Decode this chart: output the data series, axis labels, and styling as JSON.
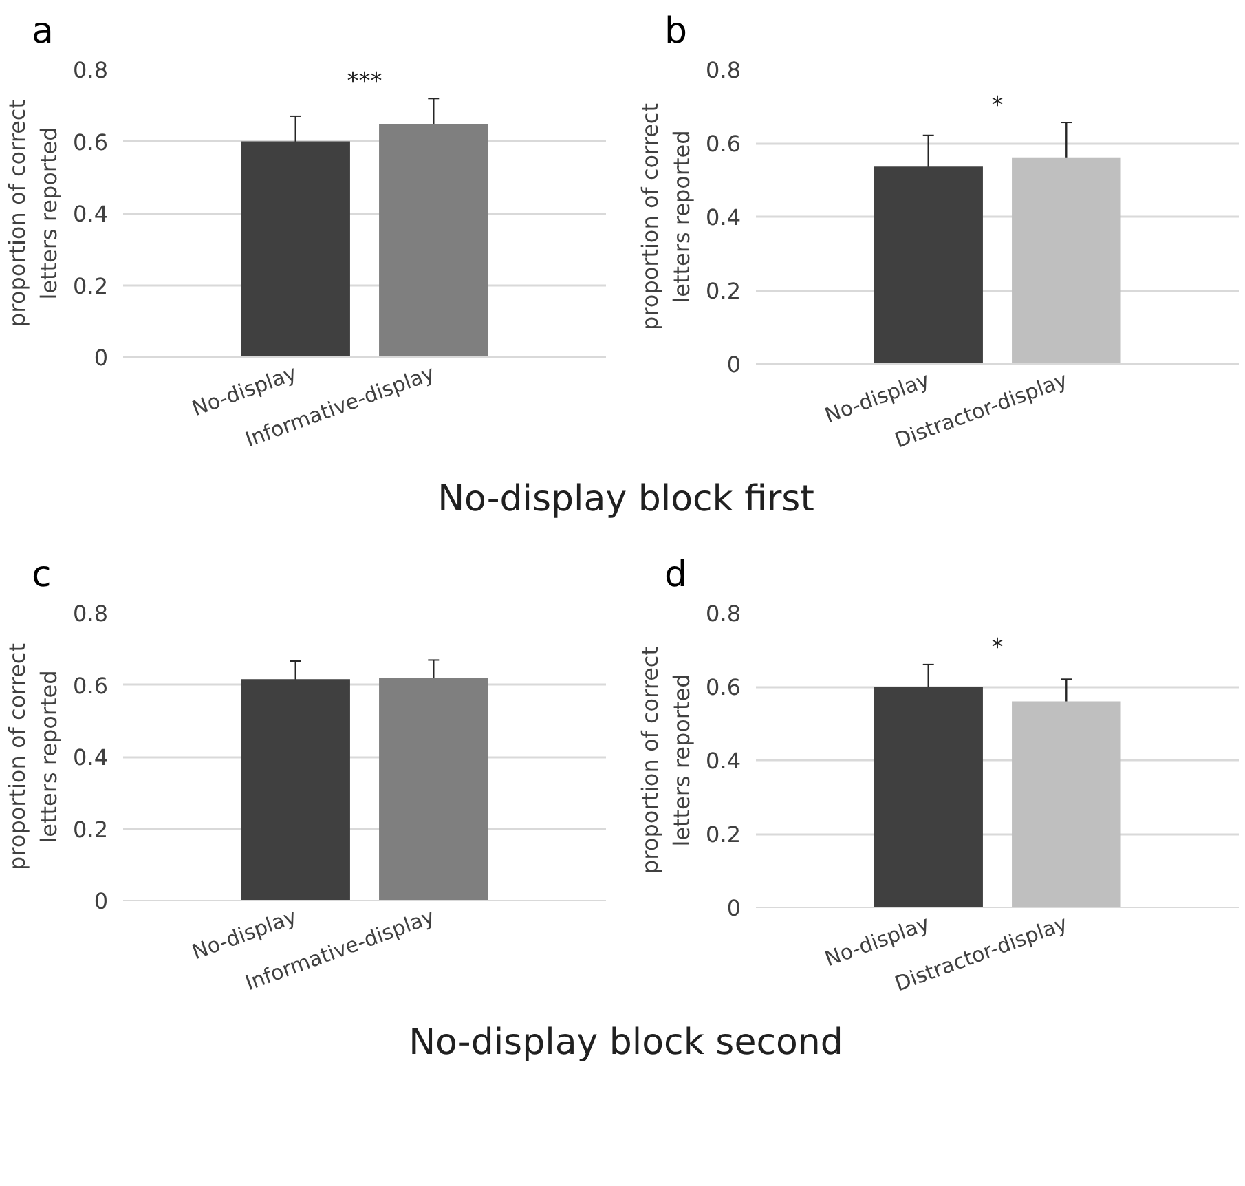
{
  "chart_data": [
    {
      "type": "bar",
      "title": "a",
      "ylabel": "proportion of correct letters reported",
      "categories": [
        "No-display",
        "Informative-display"
      ],
      "values": [
        0.6,
        0.649
      ],
      "colors": [
        "#404040",
        "#7f7f7f"
      ],
      "errors": [
        0.07,
        0.07
      ],
      "ylim": [
        0,
        0.8
      ],
      "yticks": [
        0,
        0.2,
        0.4,
        0.6,
        0.8
      ],
      "grid": "y",
      "annotations": [
        "***"
      ],
      "subtitle": "No-display block first"
    },
    {
      "type": "bar",
      "title": "b",
      "ylabel": "proportion of correct letters reported",
      "categories": [
        "No-display",
        "Distractor-display"
      ],
      "values": [
        0.536,
        0.561
      ],
      "colors": [
        "#404040",
        "#bfbfbf"
      ],
      "errors": [
        0.085,
        0.095
      ],
      "ylim": [
        0,
        0.8
      ],
      "yticks": [
        0,
        0.2,
        0.4,
        0.6,
        0.8
      ],
      "grid": "y",
      "annotations": [
        "*"
      ]
    },
    {
      "type": "bar",
      "title": "c",
      "ylabel": "proportion of correct letters reported",
      "categories": [
        "No-display",
        "Informative-display"
      ],
      "values": [
        0.616,
        0.619
      ],
      "colors": [
        "#404040",
        "#7f7f7f"
      ],
      "errors": [
        0.05,
        0.05
      ],
      "ylim": [
        0,
        0.8
      ],
      "yticks": [
        0,
        0.2,
        0.4,
        0.6,
        0.8
      ],
      "grid": "y",
      "subtitle": "No-display block second"
    },
    {
      "type": "bar",
      "title": "d",
      "ylabel": "proportion of correct letters reported",
      "categories": [
        "No-display",
        "Distractor-display"
      ],
      "values": [
        0.6,
        0.56
      ],
      "colors": [
        "#404040",
        "#bfbfbf"
      ],
      "errors": [
        0.06,
        0.06
      ],
      "ylim": [
        0,
        0.8
      ],
      "yticks": [
        0,
        0.2,
        0.4,
        0.6,
        0.8
      ],
      "grid": "y",
      "annotations": [
        "*"
      ]
    }
  ]
}
